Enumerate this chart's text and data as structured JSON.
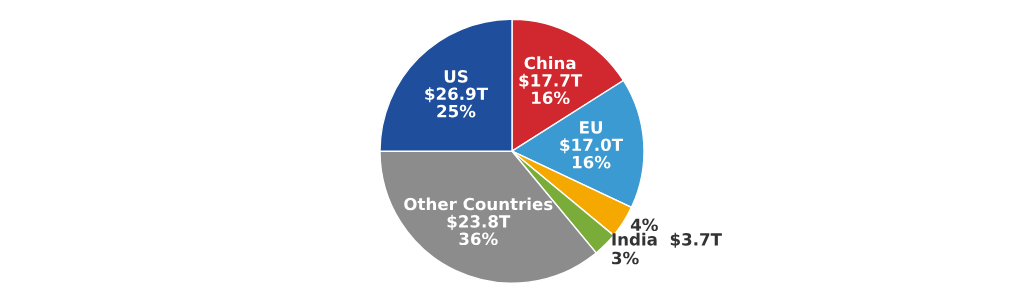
{
  "chart_data": {
    "type": "pie",
    "categories": [
      "China",
      "EU",
      null,
      "India",
      "Other Countries",
      "US"
    ],
    "values": [
      16,
      16,
      4,
      3,
      36,
      25
    ],
    "value_labels": [
      "$17.7T\n16%",
      "$17.0T\n16%",
      "4%",
      "$3.7T\n3%",
      "$23.8T\n36%",
      "$26.9T\n25%"
    ],
    "colors": [
      "#d0282e",
      "#3a9ad1",
      "#f5a800",
      "#7aac3a",
      "#8c8c8c",
      "#1f4e9c"
    ]
  }
}
